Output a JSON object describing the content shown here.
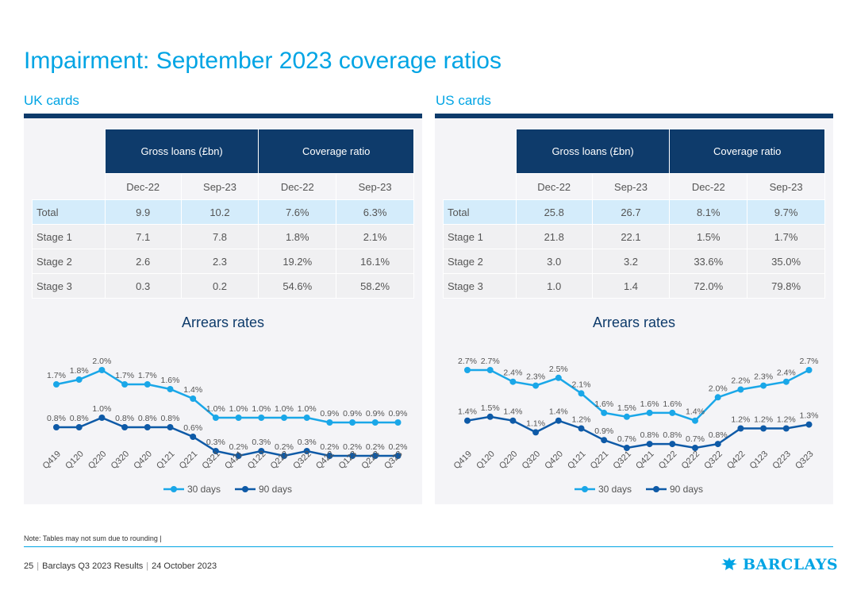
{
  "title": "Impairment: September 2023 coverage ratios",
  "colors": {
    "accent": "#00a4e4",
    "navy": "#0e3b6b",
    "series30": "#1aa7e8",
    "series90": "#0e5aa7"
  },
  "panels": [
    {
      "heading": "UK cards",
      "table": {
        "group_headers": [
          "Gross loans (£bn)",
          "Coverage ratio"
        ],
        "sub_headers": [
          "Dec-22",
          "Sep-23",
          "Dec-22",
          "Sep-23"
        ],
        "rows": [
          {
            "label": "Total",
            "values": [
              "9.9",
              "10.2",
              "7.6%",
              "6.3%"
            ]
          },
          {
            "label": "Stage 1",
            "values": [
              "7.1",
              "7.8",
              "1.8%",
              "2.1%"
            ]
          },
          {
            "label": "Stage 2",
            "values": [
              "2.6",
              "2.3",
              "19.2%",
              "16.1%"
            ]
          },
          {
            "label": "Stage 3",
            "values": [
              "0.3",
              "0.2",
              "54.6%",
              "58.2%"
            ]
          }
        ]
      },
      "chart_title": "Arrears rates"
    },
    {
      "heading": "US cards",
      "table": {
        "group_headers": [
          "Gross loans (£bn)",
          "Coverage ratio"
        ],
        "sub_headers": [
          "Dec-22",
          "Sep-23",
          "Dec-22",
          "Sep-23"
        ],
        "rows": [
          {
            "label": "Total",
            "values": [
              "25.8",
              "26.7",
              "8.1%",
              "9.7%"
            ]
          },
          {
            "label": "Stage 1",
            "values": [
              "21.8",
              "22.1",
              "1.5%",
              "1.7%"
            ]
          },
          {
            "label": "Stage 2",
            "values": [
              "3.0",
              "3.2",
              "33.6%",
              "35.0%"
            ]
          },
          {
            "label": "Stage 3",
            "values": [
              "1.0",
              "1.4",
              "72.0%",
              "79.8%"
            ]
          }
        ]
      },
      "chart_title": "Arrears rates"
    }
  ],
  "chart_data": [
    {
      "type": "line",
      "title": "Arrears rates",
      "categories": [
        "Q419",
        "Q120",
        "Q220",
        "Q320",
        "Q420",
        "Q121",
        "Q221",
        "Q321",
        "Q421",
        "Q122",
        "Q222",
        "Q322",
        "Q422",
        "Q123",
        "Q223",
        "Q323"
      ],
      "series": [
        {
          "name": "30 days",
          "values": [
            1.7,
            1.8,
            2.0,
            1.7,
            1.7,
            1.6,
            1.4,
            1.0,
            1.0,
            1.0,
            1.0,
            1.0,
            0.9,
            0.9,
            0.9,
            0.9
          ],
          "labels": [
            "1.7%",
            "1.8%",
            "2.0%",
            "1.7%",
            "1.7%",
            "1.6%",
            "1.4%",
            "1.0%",
            "1.0%",
            "1.0%",
            "1.0%",
            "1.0%",
            "0.9%",
            "0.9%",
            "0.9%",
            "0.9%"
          ]
        },
        {
          "name": "90 days",
          "values": [
            0.8,
            0.8,
            1.0,
            0.8,
            0.8,
            0.8,
            0.6,
            0.3,
            0.2,
            0.3,
            0.2,
            0.3,
            0.2,
            0.2,
            0.2,
            0.2
          ],
          "labels": [
            "0.8%",
            "0.8%",
            "1.0%",
            "0.8%",
            "0.8%",
            "0.8%",
            "0.6%",
            "0.3%",
            "0.2%",
            "0.3%",
            "0.2%",
            "0.3%",
            "0.2%",
            "0.2%",
            "0.2%",
            "0.2%"
          ]
        }
      ],
      "legend": "bottom",
      "grid": false
    },
    {
      "type": "line",
      "title": "Arrears rates",
      "categories": [
        "Q419",
        "Q120",
        "Q220",
        "Q320",
        "Q420",
        "Q121",
        "Q221",
        "Q321",
        "Q421",
        "Q122",
        "Q222",
        "Q322",
        "Q422",
        "Q123",
        "Q223",
        "Q323"
      ],
      "series": [
        {
          "name": "30 days",
          "values": [
            2.7,
            2.7,
            2.4,
            2.3,
            2.5,
            2.1,
            1.6,
            1.5,
            1.6,
            1.6,
            1.4,
            2.0,
            2.2,
            2.3,
            2.4,
            2.7
          ],
          "labels": [
            "2.7%",
            "2.7%",
            "2.4%",
            "2.3%",
            "2.5%",
            "2.1%",
            "1.6%",
            "1.5%",
            "1.6%",
            "1.6%",
            "1.4%",
            "2.0%",
            "2.2%",
            "2.3%",
            "2.4%",
            "2.7%"
          ]
        },
        {
          "name": "90 days",
          "values": [
            1.4,
            1.5,
            1.4,
            1.1,
            1.4,
            1.2,
            0.9,
            0.7,
            0.8,
            0.8,
            0.7,
            0.8,
            1.2,
            1.2,
            1.2,
            1.3
          ],
          "labels": [
            "1.4%",
            "1.5%",
            "1.4%",
            "1.1%",
            "1.4%",
            "1.2%",
            "0.9%",
            "0.7%",
            "0.8%",
            "0.8%",
            "0.7%",
            "0.8%",
            "1.2%",
            "1.2%",
            "1.2%",
            "1.3%"
          ]
        }
      ],
      "legend": "bottom",
      "grid": false
    }
  ],
  "note": "Note: Tables may not sum due to rounding |",
  "footer": {
    "page": "25",
    "report": "Barclays Q3 2023 Results",
    "date": "24 October 2023"
  },
  "logo": {
    "text": "BARCLAYS",
    "icon": "eagle-icon"
  }
}
